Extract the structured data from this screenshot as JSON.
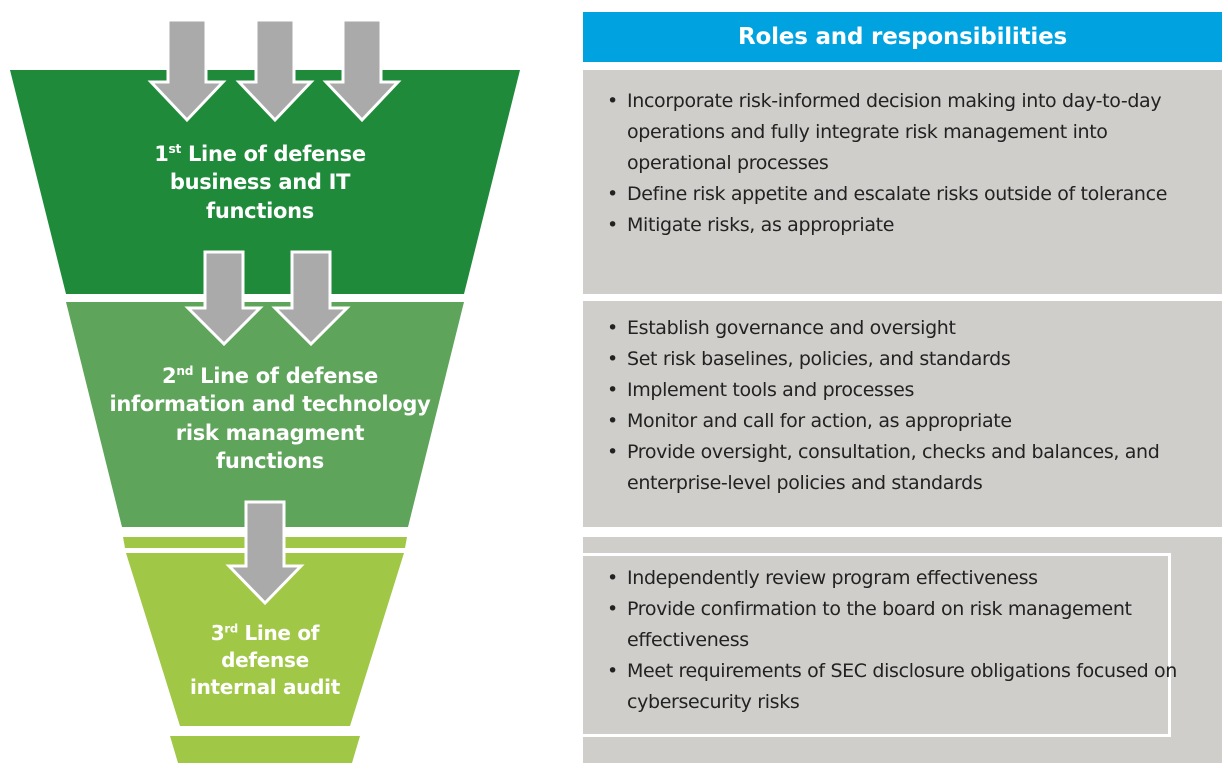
{
  "colors": {
    "tier1": "#1e8a3a",
    "tier2": "#5ea45a",
    "tier3": "#a0c846",
    "arrow": "#aaaaaa",
    "header": "#00a3e0",
    "panel": "#d0cecb"
  },
  "funnel": {
    "tier1": {
      "lines": [
        {
          "sup_num": "1",
          "sup": "st",
          "text": " Line of defense"
        },
        {
          "text": "business and IT"
        },
        {
          "text": "functions"
        }
      ]
    },
    "tier2": {
      "lines": [
        {
          "sup_num": "2",
          "sup": "nd",
          "text": " Line of defense"
        },
        {
          "text": "information and technology"
        },
        {
          "text": "risk managment"
        },
        {
          "text": "functions"
        }
      ]
    },
    "tier3": {
      "lines": [
        {
          "sup_num": "3",
          "sup": "rd",
          "text": " Line of"
        },
        {
          "text": "defense"
        },
        {
          "text": "internal audit"
        }
      ]
    }
  },
  "roles": {
    "header": "Roles and responsibilities",
    "panel1": [
      "Incorporate risk-informed decision making into day-to-day operations and fully integrate risk management into operational processes",
      "Define risk appetite and escalate risks outside of tolerance",
      "Mitigate risks, as appropriate"
    ],
    "panel2": [
      "Establish governance and oversight",
      "Set risk baselines, policies, and standards",
      "Implement tools and processes",
      "Monitor and call for action, as appropriate",
      "Provide oversight, consultation, checks and balances, and enterprise-level policies and standards"
    ],
    "panel3": [
      "Independently review program effectiveness",
      "Provide confirmation to the board on risk management effectiveness",
      "Meet requirements of SEC disclosure obligations focused on cybersecurity risks"
    ]
  }
}
